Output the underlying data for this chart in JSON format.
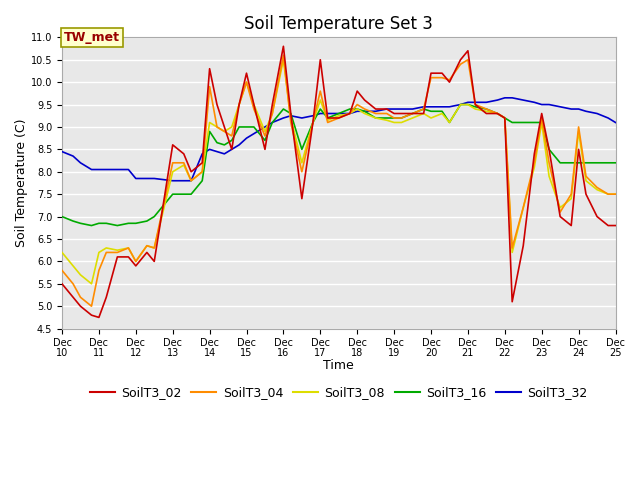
{
  "title": "Soil Temperature Set 3",
  "xlabel": "Time",
  "ylabel": "Soil Temperature (C)",
  "annotation": "TW_met",
  "ylim": [
    4.5,
    11.0
  ],
  "yticks": [
    4.5,
    5.0,
    5.5,
    6.0,
    6.5,
    7.0,
    7.5,
    8.0,
    8.5,
    9.0,
    9.5,
    10.0,
    10.5,
    11.0
  ],
  "x_labels": [
    "Dec 10",
    "Dec 11",
    "Dec 12",
    "Dec 13",
    "Dec 14",
    "Dec 15",
    "Dec 16",
    "Dec 17",
    "Dec 18",
    "Dec 19",
    "Dec 20",
    "Dec 21",
    "Dec 22",
    "Dec 23",
    "Dec 24",
    "Dec 25"
  ],
  "x_values": [
    10,
    11,
    12,
    13,
    14,
    15,
    16,
    17,
    18,
    19,
    20,
    21,
    22,
    23,
    24,
    25
  ],
  "series": {
    "SoilT3_02": {
      "color": "#cc0000",
      "x": [
        10,
        10.3,
        10.5,
        10.8,
        11.0,
        11.2,
        11.5,
        11.8,
        12.0,
        12.3,
        12.5,
        13.0,
        13.3,
        13.5,
        13.8,
        14.0,
        14.2,
        14.4,
        14.6,
        14.8,
        15.0,
        15.2,
        15.5,
        15.7,
        16.0,
        16.2,
        16.5,
        16.8,
        17.0,
        17.2,
        17.5,
        17.8,
        18.0,
        18.2,
        18.5,
        18.8,
        19.0,
        19.2,
        19.5,
        19.8,
        20.0,
        20.3,
        20.5,
        20.8,
        21.0,
        21.2,
        21.5,
        21.8,
        22.0,
        22.2,
        22.5,
        22.8,
        23.0,
        23.2,
        23.5,
        23.8,
        24.0,
        24.2,
        24.5,
        24.8,
        25.0
      ],
      "y": [
        5.5,
        5.2,
        5.0,
        4.8,
        4.75,
        5.2,
        6.1,
        6.1,
        5.9,
        6.2,
        6.0,
        8.6,
        8.4,
        8.0,
        8.2,
        10.3,
        9.5,
        9.0,
        8.5,
        9.5,
        10.2,
        9.5,
        8.5,
        9.5,
        10.8,
        9.3,
        7.4,
        9.1,
        10.5,
        9.2,
        9.2,
        9.3,
        9.8,
        9.6,
        9.4,
        9.4,
        9.3,
        9.3,
        9.3,
        9.3,
        10.2,
        10.2,
        10.0,
        10.5,
        10.7,
        9.5,
        9.3,
        9.3,
        9.2,
        5.1,
        6.35,
        8.4,
        9.3,
        8.5,
        7.0,
        6.8,
        8.5,
        7.5,
        7.0,
        6.8,
        6.8
      ]
    },
    "SoilT3_04": {
      "color": "#ff8c00",
      "x": [
        10,
        10.3,
        10.5,
        10.8,
        11.0,
        11.2,
        11.5,
        11.8,
        12.0,
        12.3,
        12.5,
        13.0,
        13.3,
        13.5,
        13.8,
        14.0,
        14.2,
        14.4,
        14.6,
        14.8,
        15.0,
        15.2,
        15.5,
        15.7,
        16.0,
        16.2,
        16.5,
        16.8,
        17.0,
        17.2,
        17.5,
        17.8,
        18.0,
        18.2,
        18.5,
        18.8,
        19.0,
        19.2,
        19.5,
        19.8,
        20.0,
        20.3,
        20.5,
        20.8,
        21.0,
        21.2,
        21.5,
        21.8,
        22.0,
        22.2,
        22.5,
        22.8,
        23.0,
        23.2,
        23.5,
        23.8,
        24.0,
        24.2,
        24.5,
        24.8,
        25.0
      ],
      "y": [
        5.8,
        5.5,
        5.2,
        5.0,
        5.8,
        6.2,
        6.2,
        6.3,
        6.0,
        6.35,
        6.3,
        8.2,
        8.2,
        7.8,
        8.0,
        9.9,
        9.0,
        8.9,
        8.8,
        9.5,
        10.0,
        9.4,
        8.8,
        9.3,
        10.6,
        9.1,
        8.0,
        9.1,
        9.8,
        9.1,
        9.2,
        9.3,
        9.5,
        9.4,
        9.3,
        9.3,
        9.2,
        9.2,
        9.3,
        9.4,
        10.1,
        10.1,
        10.05,
        10.4,
        10.5,
        9.5,
        9.4,
        9.3,
        9.2,
        6.3,
        7.2,
        8.2,
        9.2,
        8.2,
        7.1,
        7.5,
        9.0,
        7.9,
        7.65,
        7.5,
        7.5
      ]
    },
    "SoilT3_08": {
      "color": "#dddd00",
      "x": [
        10,
        10.3,
        10.5,
        10.8,
        11.0,
        11.2,
        11.5,
        11.8,
        12.0,
        12.3,
        12.5,
        13.0,
        13.3,
        13.5,
        13.8,
        14.0,
        14.2,
        14.4,
        14.6,
        14.8,
        15.0,
        15.2,
        15.5,
        15.7,
        16.0,
        16.2,
        16.5,
        16.8,
        17.0,
        17.2,
        17.5,
        17.8,
        18.0,
        18.2,
        18.5,
        18.8,
        19.0,
        19.2,
        19.5,
        19.8,
        20.0,
        20.3,
        20.5,
        20.8,
        21.0,
        21.2,
        21.5,
        21.8,
        22.0,
        22.2,
        22.5,
        22.8,
        23.0,
        23.2,
        23.5,
        23.8,
        24.0,
        24.2,
        24.5,
        24.8,
        25.0
      ],
      "y": [
        6.2,
        5.9,
        5.7,
        5.5,
        6.2,
        6.3,
        6.25,
        6.3,
        6.0,
        6.35,
        6.3,
        8.0,
        8.15,
        7.8,
        8.0,
        9.1,
        9.0,
        8.9,
        9.0,
        9.5,
        10.0,
        9.5,
        8.9,
        9.3,
        10.5,
        9.2,
        8.2,
        9.1,
        9.6,
        9.15,
        9.25,
        9.3,
        9.4,
        9.3,
        9.2,
        9.15,
        9.1,
        9.1,
        9.2,
        9.3,
        9.2,
        9.3,
        9.1,
        9.5,
        9.5,
        9.4,
        9.35,
        9.3,
        9.2,
        6.2,
        7.2,
        8.1,
        9.1,
        7.9,
        7.2,
        7.4,
        8.9,
        7.8,
        7.6,
        7.5,
        7.5
      ]
    },
    "SoilT3_16": {
      "color": "#00aa00",
      "x": [
        10,
        10.3,
        10.5,
        10.8,
        11.0,
        11.2,
        11.5,
        11.8,
        12.0,
        12.3,
        12.5,
        13.0,
        13.3,
        13.5,
        13.8,
        14.0,
        14.2,
        14.4,
        14.6,
        14.8,
        15.0,
        15.2,
        15.5,
        15.7,
        16.0,
        16.2,
        16.5,
        16.8,
        17.0,
        17.2,
        17.5,
        17.8,
        18.0,
        18.2,
        18.5,
        18.8,
        19.0,
        19.2,
        19.5,
        19.8,
        20.0,
        20.3,
        20.5,
        20.8,
        21.0,
        21.2,
        21.5,
        21.8,
        22.0,
        22.2,
        22.5,
        22.8,
        23.0,
        23.2,
        23.5,
        23.8,
        24.0,
        24.2,
        24.5,
        24.8,
        25.0
      ],
      "y": [
        7.0,
        6.9,
        6.85,
        6.8,
        6.85,
        6.85,
        6.8,
        6.85,
        6.85,
        6.9,
        7.0,
        7.5,
        7.5,
        7.5,
        7.8,
        8.9,
        8.65,
        8.6,
        8.7,
        9.0,
        9.0,
        9.0,
        8.7,
        9.1,
        9.4,
        9.3,
        8.5,
        9.1,
        9.4,
        9.2,
        9.3,
        9.4,
        9.4,
        9.35,
        9.2,
        9.2,
        9.2,
        9.2,
        9.3,
        9.4,
        9.35,
        9.35,
        9.1,
        9.5,
        9.5,
        9.45,
        9.4,
        9.3,
        9.2,
        9.1,
        9.1,
        9.1,
        9.1,
        8.5,
        8.2,
        8.2,
        8.2,
        8.2,
        8.2,
        8.2,
        8.2
      ]
    },
    "SoilT3_32": {
      "color": "#0000cc",
      "x": [
        10,
        10.3,
        10.5,
        10.8,
        11.0,
        11.2,
        11.5,
        11.8,
        12.0,
        12.3,
        12.5,
        13.0,
        13.3,
        13.5,
        13.8,
        14.0,
        14.2,
        14.4,
        14.6,
        14.8,
        15.0,
        15.2,
        15.5,
        15.7,
        16.0,
        16.2,
        16.5,
        16.8,
        17.0,
        17.2,
        17.5,
        17.8,
        18.0,
        18.2,
        18.5,
        18.8,
        19.0,
        19.2,
        19.5,
        19.8,
        20.0,
        20.3,
        20.5,
        20.8,
        21.0,
        21.2,
        21.5,
        21.8,
        22.0,
        22.2,
        22.5,
        22.8,
        23.0,
        23.2,
        23.5,
        23.8,
        24.0,
        24.2,
        24.5,
        24.8,
        25.0
      ],
      "y": [
        8.45,
        8.35,
        8.2,
        8.05,
        8.05,
        8.05,
        8.05,
        8.05,
        7.85,
        7.85,
        7.85,
        7.8,
        7.8,
        7.8,
        8.4,
        8.5,
        8.45,
        8.4,
        8.5,
        8.6,
        8.75,
        8.85,
        9.0,
        9.1,
        9.2,
        9.25,
        9.2,
        9.25,
        9.3,
        9.3,
        9.3,
        9.3,
        9.35,
        9.35,
        9.35,
        9.4,
        9.4,
        9.4,
        9.4,
        9.45,
        9.45,
        9.45,
        9.45,
        9.5,
        9.55,
        9.55,
        9.55,
        9.6,
        9.65,
        9.65,
        9.6,
        9.55,
        9.5,
        9.5,
        9.45,
        9.4,
        9.4,
        9.35,
        9.3,
        9.2,
        9.1
      ]
    }
  },
  "background_color": "#e8e8e8",
  "grid_color": "#ffffff",
  "title_fontsize": 12,
  "axis_fontsize": 9,
  "tick_fontsize": 7,
  "legend_fontsize": 9,
  "annotation_fontsize": 9
}
